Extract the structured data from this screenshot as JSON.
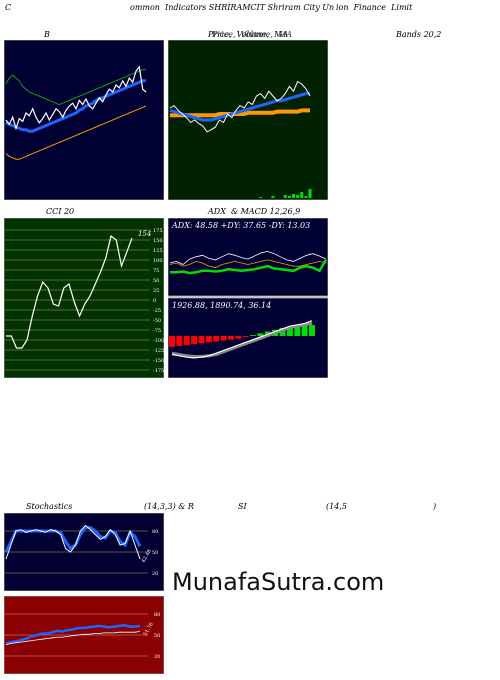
{
  "header": {
    "left": "C",
    "title": "ommon  Indicators SHRIRAMCIT Shriram City Un",
    "title2": "ion  Finance  Limit"
  },
  "bollinger": {
    "label": "B",
    "right_label": "Bands 20,2"
  },
  "price_ma": {
    "label": "Price,  Volume,  MA",
    "label_overlay": "Price,  Volume,  MA"
  },
  "cci": {
    "label": "CCI 20",
    "value_label": "154",
    "ticks": [
      "175",
      "150",
      "125",
      "100",
      "75",
      "50",
      "25",
      "0",
      "-25",
      "-50",
      "-75",
      "-100",
      "-125",
      "-150",
      "-175"
    ]
  },
  "adx_macd": {
    "label": "ADX  & MACD 12,26,9",
    "adx_text": "ADX: 48.58  +DY: 37.65 -DY: 13.03",
    "macd_text": "1926.88,  1890.74,  36.14"
  },
  "stoch_rsi": {
    "label_left": "Stochastics",
    "label_mid": "(14,3,3) & R",
    "label_si": "SI",
    "label_rsi": "(14,5",
    "label_close": ")",
    "stoch_ticks": [
      "80",
      "50",
      "20"
    ],
    "stoch_value": "42.48",
    "rsi_ticks": [
      "80",
      "50",
      "20"
    ],
    "rsi_value": "51.76"
  },
  "watermark": "MunafaSutra.com",
  "colors": {
    "panel_navy": "#000033",
    "panel_green": "#002200",
    "cci_bg": "#003300",
    "rsi_bg": "#8b0000",
    "blue": "#1e64ff",
    "white": "#ffffff",
    "orange": "#ff9900",
    "green": "#00dd00",
    "red": "#ff0000"
  },
  "chart_data": [
    {
      "type": "line",
      "name": "bollinger",
      "series": [
        {
          "values": [
            50,
            47,
            52,
            44,
            51,
            49,
            55,
            53,
            58,
            52,
            48,
            51,
            55,
            50,
            54,
            58,
            56,
            52,
            57,
            60,
            62,
            58,
            64,
            61,
            65,
            60,
            58,
            62,
            66,
            63,
            68,
            72,
            70,
            75,
            73,
            78,
            74,
            80,
            77,
            85,
            88,
            72,
            70
          ]
        },
        {
          "values": [
            48,
            47,
            46,
            45,
            44,
            43,
            43,
            42,
            42,
            43,
            44,
            45,
            46,
            47,
            48,
            49,
            50,
            51,
            52,
            53,
            54,
            55,
            57,
            58,
            60,
            61,
            62,
            64,
            65,
            66,
            67,
            68,
            69,
            70,
            71,
            72,
            73,
            74,
            75,
            76,
            77,
            78,
            78
          ]
        },
        {
          "values": [
            76,
            80,
            82,
            80,
            78,
            74,
            72,
            70,
            69,
            68,
            67,
            66,
            65,
            64,
            63,
            62,
            61,
            62,
            63,
            64,
            65,
            66,
            67,
            68,
            69,
            70,
            71,
            72,
            73,
            74,
            75,
            76,
            77,
            78,
            79,
            80,
            81,
            82,
            83,
            84,
            85,
            86,
            86
          ]
        },
        {
          "values": [
            26,
            24,
            23,
            22,
            22,
            23,
            24,
            25,
            26,
            27,
            28,
            29,
            30,
            31,
            32,
            33,
            34,
            35,
            36,
            37,
            38,
            39,
            40,
            41,
            42,
            43,
            44,
            45,
            46,
            47,
            48,
            49,
            50,
            51,
            52,
            53,
            54,
            55,
            56,
            57,
            58,
            59,
            60
          ]
        }
      ]
    },
    {
      "type": "line",
      "name": "price_volume_ma",
      "series": [
        {
          "values": [
            60,
            62,
            58,
            55,
            52,
            48,
            50,
            47,
            45,
            40,
            42,
            44,
            50,
            48,
            55,
            52,
            58,
            62,
            60,
            65,
            63,
            70,
            72,
            68,
            74,
            70,
            66,
            68,
            72,
            78,
            74,
            82,
            80,
            76,
            70
          ]
        },
        {
          "values": [
            58,
            57,
            56,
            55,
            54,
            53,
            52,
            51,
            50,
            50,
            50,
            51,
            52,
            53,
            54,
            55,
            56,
            57,
            58,
            59,
            60,
            61,
            62,
            63,
            64,
            65,
            66,
            66,
            67,
            68,
            69,
            70,
            71,
            72,
            72
          ]
        },
        {
          "values": [
            54,
            54,
            54,
            54,
            54,
            54,
            54,
            54,
            54,
            54,
            54,
            54,
            55,
            55,
            55,
            55,
            55,
            55,
            55,
            56,
            56,
            56,
            56,
            56,
            56,
            56,
            57,
            57,
            57,
            57,
            57,
            57,
            58,
            58,
            58
          ]
        },
        {
          "values": [
            0,
            0,
            0,
            0,
            0,
            0,
            0,
            0,
            0,
            0,
            0,
            0,
            0,
            0,
            0,
            0,
            0,
            0,
            0,
            0,
            0,
            0,
            1,
            0,
            0,
            2,
            0,
            0,
            3,
            2,
            4,
            3,
            6,
            2,
            9
          ]
        }
      ]
    },
    {
      "type": "line",
      "name": "cci",
      "yrange": [
        -175,
        175
      ],
      "series": [
        {
          "values": [
            -90,
            -90,
            -120,
            -120,
            -100,
            -40,
            10,
            45,
            30,
            -10,
            -15,
            30,
            40,
            -5,
            -40,
            -10,
            10,
            40,
            70,
            105,
            160,
            150,
            85,
            120,
            155
          ]
        }
      ]
    },
    {
      "type": "line",
      "name": "adx_macd",
      "adx": 48.58,
      "pdi": 37.65,
      "mdi": 13.03,
      "macd": 1926.88,
      "signal": 1890.74,
      "hist": 36.14
    },
    {
      "type": "line",
      "name": "stochastics",
      "yrange": [
        0,
        100
      ],
      "series": [
        {
          "values": [
            50,
            65,
            80,
            80,
            80,
            80,
            80,
            80,
            80,
            80,
            80,
            78,
            65,
            55,
            60,
            75,
            85,
            85,
            80,
            72,
            70,
            80,
            78,
            65,
            60,
            78,
            72,
            58
          ]
        },
        {
          "values": [
            40,
            60,
            80,
            82,
            78,
            80,
            82,
            80,
            78,
            82,
            80,
            75,
            55,
            50,
            60,
            80,
            88,
            82,
            75,
            68,
            72,
            82,
            75,
            60,
            62,
            80,
            60,
            40
          ]
        }
      ],
      "value": 42.48
    },
    {
      "type": "line",
      "name": "rsi",
      "yrange": [
        0,
        100
      ],
      "series": [
        {
          "values": [
            38,
            40,
            41,
            43,
            45,
            48,
            50,
            52,
            52,
            54,
            56,
            55,
            57,
            58,
            60,
            60,
            61,
            62,
            63,
            62,
            61,
            62,
            63,
            64,
            62,
            62,
            63
          ]
        },
        {
          "values": [
            36,
            38,
            39,
            40,
            41,
            42,
            43,
            44,
            45,
            46,
            47,
            47,
            48,
            49,
            50,
            51,
            51,
            52,
            52,
            53,
            53,
            53,
            54,
            54,
            54,
            54,
            55
          ]
        }
      ],
      "value": 51.76
    }
  ]
}
